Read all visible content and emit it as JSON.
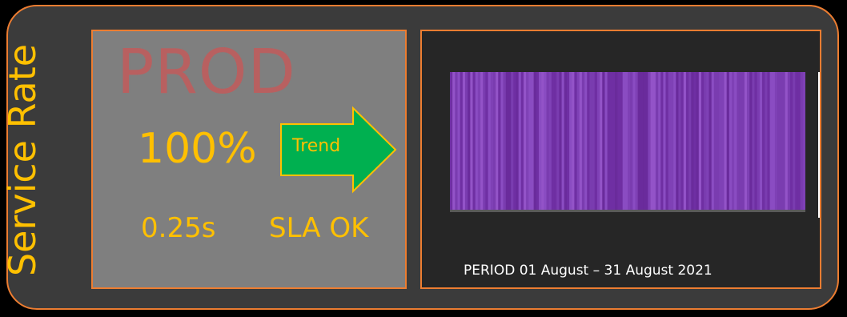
{
  "widget": {
    "side_title": "Service Rate",
    "environment": "PROD",
    "availability": "100%",
    "response_time": "0.25s",
    "sla_status": "SLA OK",
    "trend_label": "Trend",
    "period_text": "PERIOD 01 August – 31 August 2021"
  },
  "colors": {
    "accent_orange": "#ed7d31",
    "value_yellow": "#ffc000",
    "trend_green": "#00b050",
    "timeline_purple": "#7030a0",
    "card_bg": "#3b3b3b"
  },
  "timeline": {
    "status": "up",
    "segments": 140
  }
}
